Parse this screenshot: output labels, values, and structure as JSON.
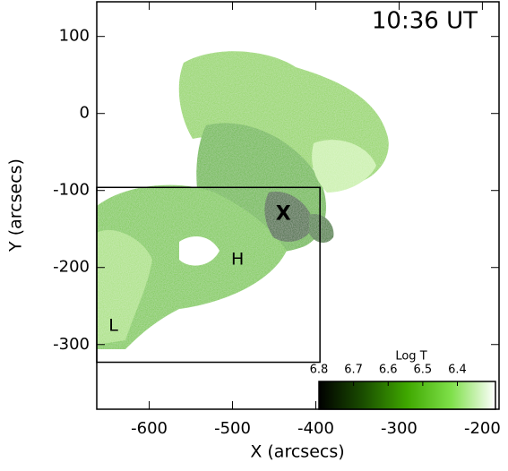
{
  "chart_data": {
    "type": "image",
    "title": "10:36 UT",
    "xlabel": "X (arcsecs)",
    "ylabel": "Y (arcsecs)",
    "xlim": [
      -663,
      -180
    ],
    "ylim": [
      -384,
      145
    ],
    "xticks": [
      -600,
      -500,
      -400,
      -300,
      -200
    ],
    "yticks": [
      -300,
      -200,
      -100,
      0,
      100
    ],
    "annotations": [
      {
        "text": "X",
        "x": -439,
        "y": -131
      },
      {
        "text": "H",
        "x": -494,
        "y": -190
      },
      {
        "text": "L",
        "x": -643,
        "y": -276
      }
    ],
    "box": {
      "x": [
        -663,
        -395
      ],
      "y": [
        -323,
        -96
      ]
    },
    "colorbar": {
      "label": "Log T",
      "lim": [
        6.8,
        6.29
      ],
      "ticks": [
        6.8,
        6.7,
        6.6,
        6.5,
        6.4
      ],
      "colors": [
        "#000000",
        "#1a4d00",
        "#3fa800",
        "#7fe04a",
        "#ffffff"
      ]
    }
  }
}
